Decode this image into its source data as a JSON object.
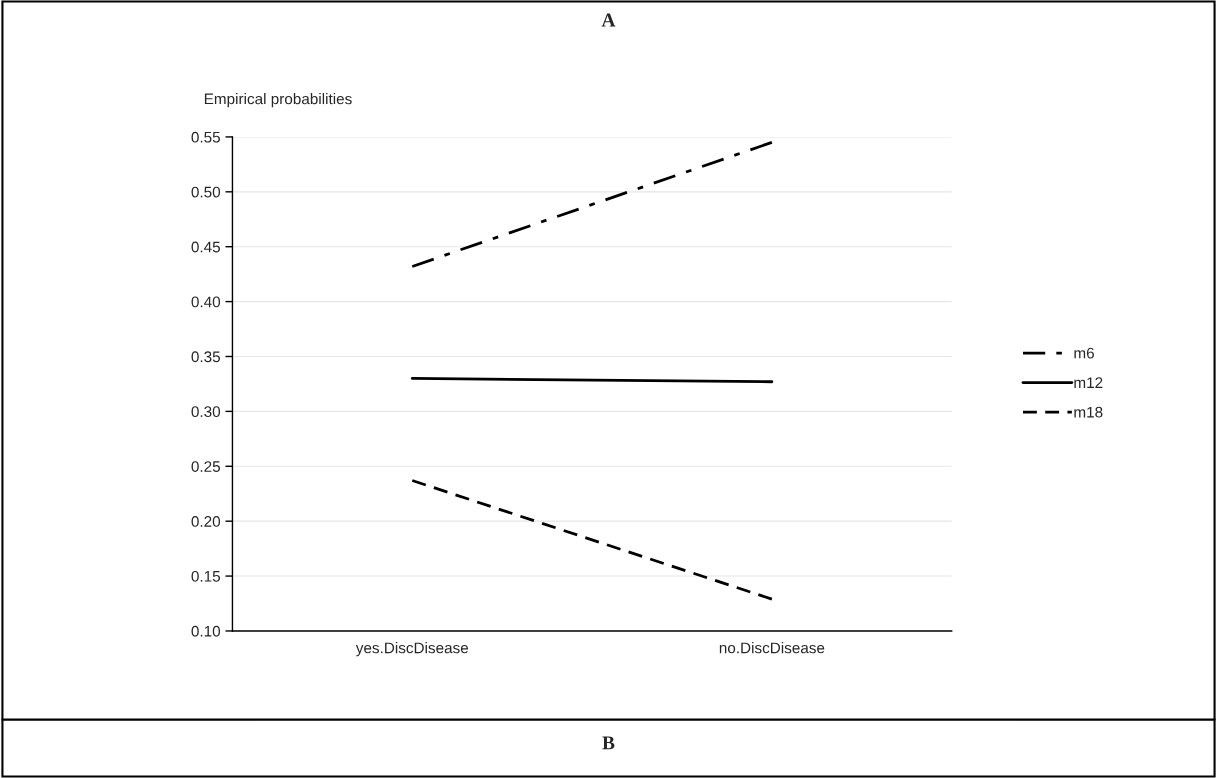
{
  "chart_data": {
    "type": "line",
    "title": "A",
    "categories": [
      "yes.DiscDisease",
      "no.DiscDisease"
    ],
    "series": [
      {
        "name": "m6",
        "color": "#000000",
        "line_style": "dashdot",
        "values": [
          0.432,
          0.545
        ]
      },
      {
        "name": "m12",
        "color": "#000000",
        "line_style": "solid",
        "values": [
          0.33,
          0.327
        ]
      },
      {
        "name": "m18",
        "color": "#000000",
        "line_style": "dashed",
        "values": [
          0.237,
          0.129
        ]
      }
    ],
    "ylabel": "Empirical probabilities",
    "ylim": [
      0.1,
      0.55
    ],
    "yticks": [
      {
        "value": 0.1,
        "label": "0.10"
      },
      {
        "value": 0.15,
        "label": "0.15"
      },
      {
        "value": 0.2,
        "label": "0.20"
      },
      {
        "value": 0.25,
        "label": "0.25"
      },
      {
        "value": 0.3,
        "label": "0.30"
      },
      {
        "value": 0.35,
        "label": "0.35"
      },
      {
        "value": 0.4,
        "label": "0.40"
      },
      {
        "value": 0.45,
        "label": "0.45"
      },
      {
        "value": 0.5,
        "label": "0.50"
      },
      {
        "value": 0.55,
        "label": "0.55"
      }
    ],
    "grid": "y",
    "legend": "right",
    "marker": "none",
    "annotations": [
      "B"
    ]
  }
}
